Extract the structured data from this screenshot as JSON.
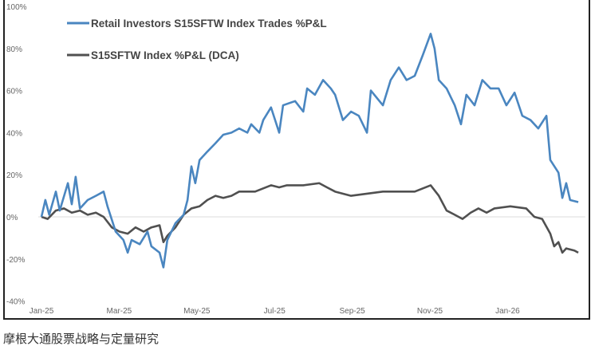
{
  "chart_data": {
    "type": "line",
    "title": "",
    "xlabel": "",
    "ylabel": "",
    "x_unit": "months since Jan-25",
    "xlim": [
      0,
      14
    ],
    "ylim": [
      -40,
      100
    ],
    "y_ticks": [
      "100%",
      "80%",
      "60%",
      "40%",
      "20%",
      "0%",
      "-20%",
      "-40%"
    ],
    "y_tick_values": [
      100,
      80,
      60,
      40,
      20,
      0,
      -20,
      -40
    ],
    "x_ticks": [
      "Jan-25",
      "Mar-25",
      "May-25",
      "Jul-25",
      "Sep-25",
      "Nov-25",
      "Jan-26"
    ],
    "x_tick_values": [
      0,
      2,
      4,
      6,
      8,
      10,
      12
    ],
    "grid": "horizontal zero line only",
    "legend_position": "top-left",
    "series": [
      {
        "name": "Retail Investors S15SFTW Index Trades %P&L",
        "color": "#4a86c0",
        "points": [
          [
            0,
            0
          ],
          [
            0.1,
            8
          ],
          [
            0.2,
            1
          ],
          [
            0.37,
            12
          ],
          [
            0.47,
            3
          ],
          [
            0.68,
            16
          ],
          [
            0.78,
            6
          ],
          [
            0.88,
            19
          ],
          [
            0.99,
            4
          ],
          [
            1.19,
            8
          ],
          [
            1.4,
            10
          ],
          [
            1.6,
            12
          ],
          [
            1.7,
            5
          ],
          [
            1.91,
            -7
          ],
          [
            2.11,
            -11
          ],
          [
            2.22,
            -17
          ],
          [
            2.32,
            -11
          ],
          [
            2.53,
            -13
          ],
          [
            2.73,
            -7
          ],
          [
            2.83,
            -14
          ],
          [
            3.04,
            -17
          ],
          [
            3.14,
            -24
          ],
          [
            3.24,
            -11
          ],
          [
            3.45,
            -3
          ],
          [
            3.66,
            1
          ],
          [
            3.76,
            8
          ],
          [
            3.86,
            24
          ],
          [
            3.96,
            16
          ],
          [
            4.07,
            27
          ],
          [
            4.27,
            31
          ],
          [
            4.48,
            35
          ],
          [
            4.68,
            39
          ],
          [
            4.89,
            40
          ],
          [
            5.09,
            42
          ],
          [
            5.3,
            40
          ],
          [
            5.4,
            44
          ],
          [
            5.61,
            40
          ],
          [
            5.71,
            46
          ],
          [
            5.91,
            52
          ],
          [
            6.12,
            40
          ],
          [
            6.22,
            53
          ],
          [
            6.53,
            55
          ],
          [
            6.74,
            50
          ],
          [
            6.84,
            61
          ],
          [
            7.04,
            58
          ],
          [
            7.25,
            65
          ],
          [
            7.45,
            61
          ],
          [
            7.56,
            58
          ],
          [
            7.76,
            46
          ],
          [
            7.97,
            50
          ],
          [
            8.17,
            48
          ],
          [
            8.38,
            40
          ],
          [
            8.48,
            60
          ],
          [
            8.79,
            53
          ],
          [
            8.99,
            65
          ],
          [
            9.2,
            71
          ],
          [
            9.4,
            65
          ],
          [
            9.61,
            67
          ],
          [
            9.82,
            77
          ],
          [
            10.02,
            87
          ],
          [
            10.12,
            80
          ],
          [
            10.23,
            65
          ],
          [
            10.43,
            61
          ],
          [
            10.64,
            53
          ],
          [
            10.8,
            44
          ],
          [
            10.94,
            58
          ],
          [
            11.15,
            53
          ],
          [
            11.35,
            65
          ],
          [
            11.56,
            61
          ],
          [
            11.77,
            61
          ],
          [
            11.97,
            53
          ],
          [
            12.18,
            59
          ],
          [
            12.38,
            48
          ],
          [
            12.59,
            46
          ],
          [
            12.79,
            42
          ],
          [
            13.0,
            48
          ],
          [
            13.1,
            27
          ],
          [
            13.31,
            21
          ],
          [
            13.41,
            9
          ],
          [
            13.51,
            16
          ],
          [
            13.61,
            8
          ],
          [
            13.82,
            7
          ]
        ]
      },
      {
        "name": "S15SFTW Index %P&L (DCA)",
        "color": "#505050",
        "points": [
          [
            0,
            0
          ],
          [
            0.16,
            -1
          ],
          [
            0.37,
            3
          ],
          [
            0.58,
            4
          ],
          [
            0.78,
            2
          ],
          [
            0.99,
            3
          ],
          [
            1.19,
            1
          ],
          [
            1.4,
            2
          ],
          [
            1.6,
            0
          ],
          [
            1.81,
            -5
          ],
          [
            2.01,
            -7
          ],
          [
            2.22,
            -8
          ],
          [
            2.42,
            -5
          ],
          [
            2.63,
            -7
          ],
          [
            2.83,
            -5
          ],
          [
            3.04,
            -4
          ],
          [
            3.14,
            -12
          ],
          [
            3.24,
            -9
          ],
          [
            3.45,
            -5
          ],
          [
            3.66,
            1
          ],
          [
            3.86,
            4
          ],
          [
            4.07,
            5
          ],
          [
            4.27,
            8
          ],
          [
            4.48,
            10
          ],
          [
            4.68,
            9
          ],
          [
            4.89,
            10
          ],
          [
            5.09,
            12
          ],
          [
            5.5,
            12
          ],
          [
            5.91,
            15
          ],
          [
            6.12,
            14
          ],
          [
            6.32,
            15
          ],
          [
            6.74,
            15
          ],
          [
            7.15,
            16
          ],
          [
            7.35,
            14
          ],
          [
            7.56,
            12
          ],
          [
            7.97,
            10
          ],
          [
            8.38,
            11
          ],
          [
            8.79,
            12
          ],
          [
            9.2,
            12
          ],
          [
            9.61,
            12
          ],
          [
            10.02,
            15
          ],
          [
            10.23,
            10
          ],
          [
            10.43,
            3
          ],
          [
            10.64,
            1
          ],
          [
            10.84,
            -1
          ],
          [
            11.05,
            2
          ],
          [
            11.25,
            4
          ],
          [
            11.46,
            2
          ],
          [
            11.66,
            4
          ],
          [
            12.07,
            5
          ],
          [
            12.48,
            4
          ],
          [
            12.69,
            0
          ],
          [
            12.89,
            -1
          ],
          [
            13.1,
            -8
          ],
          [
            13.2,
            -14
          ],
          [
            13.31,
            -12
          ],
          [
            13.41,
            -17
          ],
          [
            13.51,
            -15
          ],
          [
            13.72,
            -16
          ],
          [
            13.82,
            -17
          ]
        ]
      }
    ]
  },
  "caption": "摩根大通股票战略与定量研究"
}
